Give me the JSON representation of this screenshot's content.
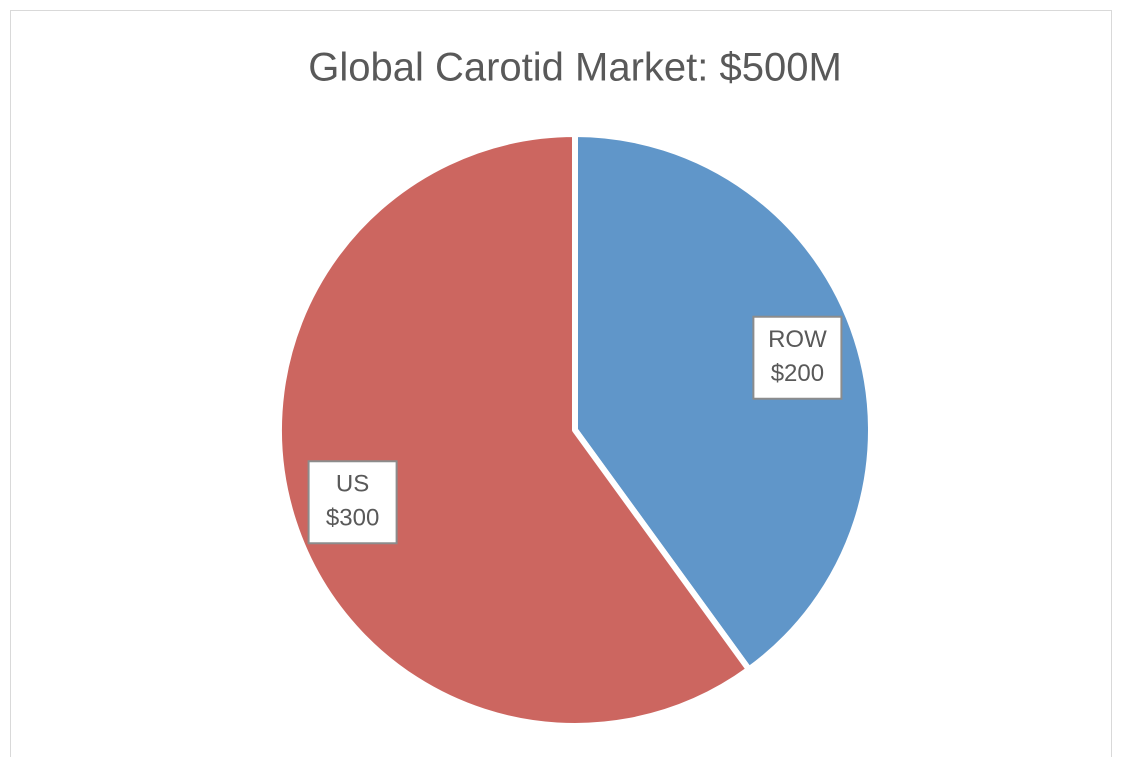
{
  "chart_data": {
    "type": "pie",
    "title": "Global Carotid Market: $500M",
    "categories": [
      "ROW",
      "US"
    ],
    "values": [
      200,
      300
    ],
    "value_labels": [
      "$200",
      "$300"
    ],
    "colors": [
      "#6096c9",
      "#cc6660"
    ]
  }
}
